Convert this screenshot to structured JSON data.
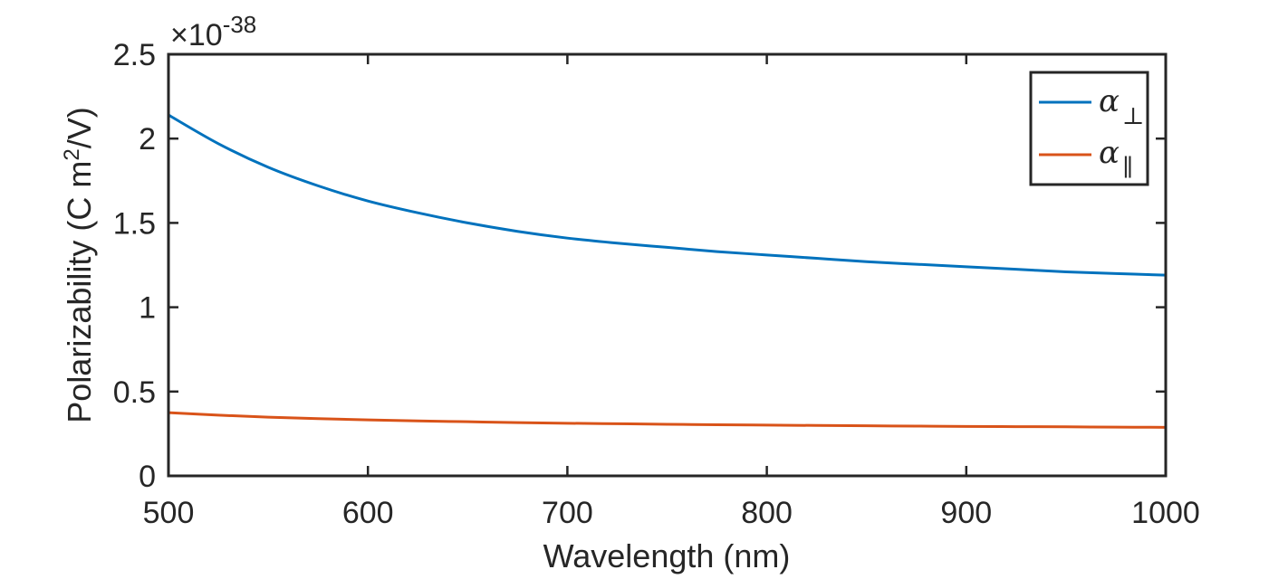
{
  "chart_data": {
    "type": "line",
    "xlabel": "Wavelength (nm)",
    "ylabel_prefix": "Polarizability (C m",
    "ylabel_superscript": "2",
    "ylabel_suffix": "/V)",
    "y_multiplier_base": "×10",
    "y_multiplier_exponent": "-38",
    "xlim": [
      500,
      1000
    ],
    "ylim": [
      0,
      2.5
    ],
    "x_ticks": [
      500,
      600,
      700,
      800,
      900,
      1000
    ],
    "x_tick_labels": [
      "500",
      "600",
      "700",
      "800",
      "900",
      "1000"
    ],
    "y_ticks": [
      0,
      0.5,
      1,
      1.5,
      2,
      2.5
    ],
    "y_tick_labels": [
      "0",
      "0.5",
      "1",
      "1.5",
      "2",
      "2.5"
    ],
    "grid": false,
    "legend_position": "top-right",
    "x": [
      500,
      525,
      550,
      575,
      600,
      625,
      650,
      675,
      700,
      725,
      750,
      775,
      800,
      825,
      850,
      875,
      900,
      925,
      950,
      975,
      1000
    ],
    "series": [
      {
        "name": "α⊥",
        "symbol": "α",
        "subscript": "⊥",
        "color": "#0072BD",
        "values": [
          2.14,
          1.97,
          1.83,
          1.72,
          1.63,
          1.56,
          1.5,
          1.45,
          1.41,
          1.38,
          1.355,
          1.33,
          1.31,
          1.29,
          1.27,
          1.255,
          1.24,
          1.225,
          1.21,
          1.2,
          1.19
        ]
      },
      {
        "name": "α∥",
        "symbol": "α",
        "subscript": "∥",
        "color": "#D95319",
        "values": [
          0.375,
          0.36,
          0.348,
          0.339,
          0.332,
          0.326,
          0.321,
          0.316,
          0.312,
          0.309,
          0.306,
          0.303,
          0.301,
          0.299,
          0.297,
          0.295,
          0.293,
          0.292,
          0.291,
          0.289,
          0.288
        ]
      }
    ]
  }
}
